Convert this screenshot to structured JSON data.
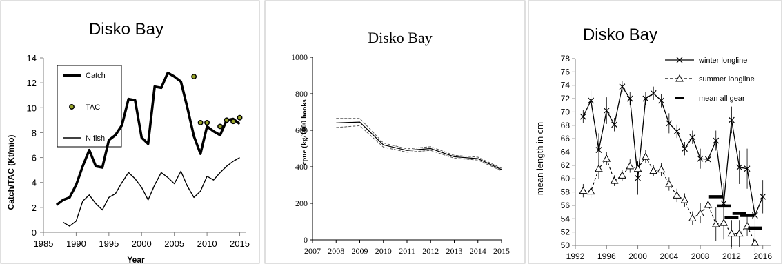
{
  "chart_data": [
    {
      "type": "line",
      "title": "Disko Bay",
      "xlabel": "Year",
      "ylabel": "Catch/TAC (Kt/mio)",
      "xlim": [
        1985,
        2016
      ],
      "ylim": [
        0,
        14
      ],
      "xticks": [
        1985,
        1990,
        1995,
        2000,
        2005,
        2010,
        2015
      ],
      "yticks": [
        0,
        2,
        4,
        6,
        8,
        10,
        12,
        14
      ],
      "legend_position": "top-left",
      "series": [
        {
          "name": "Catch",
          "style": "thick-line",
          "x": [
            1987,
            1988,
            1989,
            1990,
            1991,
            1992,
            1993,
            1994,
            1995,
            1996,
            1997,
            1998,
            1999,
            2000,
            2001,
            2002,
            2003,
            2004,
            2005,
            2006,
            2007,
            2008,
            2009,
            2010,
            2011,
            2012,
            2013,
            2014,
            2015
          ],
          "y": [
            2.2,
            2.6,
            2.8,
            3.8,
            5.3,
            6.6,
            5.3,
            5.2,
            7.4,
            7.8,
            8.6,
            10.7,
            10.6,
            7.6,
            7.1,
            11.7,
            11.6,
            12.8,
            12.5,
            12.1,
            10.0,
            7.7,
            6.3,
            8.5,
            8.1,
            7.8,
            9.0,
            9.1,
            8.7
          ]
        },
        {
          "name": "TAC",
          "style": "dots",
          "x": [
            2008,
            2009,
            2010,
            2012,
            2013,
            2014,
            2015
          ],
          "y": [
            12.5,
            8.8,
            8.8,
            8.5,
            9.0,
            8.9,
            9.2
          ]
        },
        {
          "name": "N fish",
          "style": "thin-line",
          "x": [
            1988,
            1989,
            1990,
            1991,
            1992,
            1993,
            1994,
            1995,
            1996,
            1997,
            1998,
            1999,
            2000,
            2001,
            2002,
            2003,
            2004,
            2005,
            2006,
            2007,
            2008,
            2009,
            2010,
            2011,
            2012,
            2013,
            2014,
            2015
          ],
          "y": [
            0.8,
            0.5,
            0.9,
            2.5,
            3.0,
            2.3,
            1.8,
            2.8,
            3.1,
            4.0,
            4.8,
            4.3,
            3.6,
            2.6,
            3.8,
            4.8,
            4.4,
            3.9,
            4.9,
            3.7,
            2.8,
            3.3,
            4.5,
            4.2,
            4.8,
            5.3,
            5.7,
            6.0
          ]
        }
      ]
    },
    {
      "type": "line",
      "title": "Disko Bay",
      "xlabel": "",
      "ylabel": "cpue (kg/1000 hooks",
      "xlim": [
        2007,
        2015
      ],
      "ylim": [
        0,
        1000
      ],
      "xticks": [
        2007,
        2008,
        2009,
        2010,
        2011,
        2012,
        2013,
        2014,
        2015
      ],
      "yticks": [
        0,
        200,
        400,
        600,
        800,
        1000
      ],
      "series": [
        {
          "name": "",
          "style": "solid",
          "x": [
            2008,
            2009,
            2010,
            2011,
            2012,
            2013,
            2014,
            2015
          ],
          "y": [
            640,
            645,
            520,
            490,
            500,
            455,
            445,
            385
          ]
        },
        {
          "name": "",
          "style": "dashed",
          "x": [
            2008,
            2009,
            2010,
            2011,
            2012,
            2013,
            2014,
            2015
          ],
          "y": [
            665,
            665,
            530,
            498,
            510,
            463,
            453,
            392
          ]
        },
        {
          "name": "",
          "style": "dashed",
          "x": [
            2008,
            2009,
            2010,
            2011,
            2012,
            2013,
            2014,
            2015
          ],
          "y": [
            615,
            625,
            508,
            480,
            490,
            447,
            437,
            378
          ]
        }
      ]
    },
    {
      "type": "line",
      "title": "Disko Bay",
      "xlabel": "",
      "ylabel": "mean length in cm",
      "xlim": [
        1992,
        2017
      ],
      "ylim": [
        50,
        78
      ],
      "xticks": [
        1992,
        1996,
        2000,
        2004,
        2008,
        2012,
        2016
      ],
      "yticks": [
        50,
        52,
        54,
        56,
        58,
        60,
        62,
        64,
        66,
        68,
        70,
        72,
        74,
        76,
        78
      ],
      "legend_position": "top-right",
      "series": [
        {
          "name": "winter longline",
          "style": "solid-x",
          "x": [
            1993,
            1994,
            1995,
            1996,
            1997,
            1998,
            1999,
            2000,
            2001,
            2002,
            2003,
            2004,
            2005,
            2006,
            2007,
            2008,
            2009,
            2010,
            2011,
            2012,
            2013,
            2014,
            2015,
            2016
          ],
          "y": [
            69.3,
            71.7,
            64.3,
            70.2,
            68.1,
            73.8,
            72.0,
            60.1,
            72.0,
            72.8,
            71.7,
            68.3,
            67.1,
            64.5,
            66.2,
            63.0,
            62.9,
            65.7,
            56.3,
            68.8,
            61.7,
            61.5,
            54.5,
            57.3
          ],
          "error": [
            1.0,
            1.5,
            2.5,
            2.0,
            1.0,
            0.8,
            1.0,
            2.5,
            1.0,
            1.0,
            1.0,
            1.5,
            1.0,
            1.0,
            1.0,
            1.5,
            1.5,
            1.5,
            3.0,
            2.0,
            2.5,
            3.0,
            2.5,
            2.5
          ]
        },
        {
          "name": "summer longline",
          "style": "dashed-triangle",
          "x": [
            1993,
            1994,
            1995,
            1996,
            1997,
            1998,
            1999,
            2000,
            2001,
            2002,
            2003,
            2004,
            2005,
            2006,
            2007,
            2008,
            2009,
            2010,
            2011,
            2012,
            2013,
            2014,
            2015
          ],
          "y": [
            58.2,
            58.1,
            61.5,
            63.0,
            59.7,
            60.5,
            61.9,
            61.5,
            63.3,
            61.2,
            61.4,
            59.2,
            57.5,
            56.8,
            54.1,
            54.8,
            56.1,
            53.2,
            53.4,
            51.8,
            51.8,
            52.9,
            50.4
          ],
          "error": [
            1.0,
            1.0,
            1.5,
            1.0,
            0.8,
            0.8,
            1.0,
            1.0,
            1.0,
            0.8,
            1.0,
            1.0,
            1.0,
            1.0,
            1.0,
            1.5,
            2.0,
            2.5,
            2.5,
            2.0,
            2.0,
            1.5,
            1.5
          ]
        },
        {
          "name": "mean all gear",
          "style": "bar-marker",
          "x": [
            2010,
            2011,
            2012,
            2013,
            2014,
            2015
          ],
          "y": [
            57.3,
            55.9,
            54.2,
            54.8,
            54.5,
            52.6
          ]
        }
      ]
    }
  ]
}
